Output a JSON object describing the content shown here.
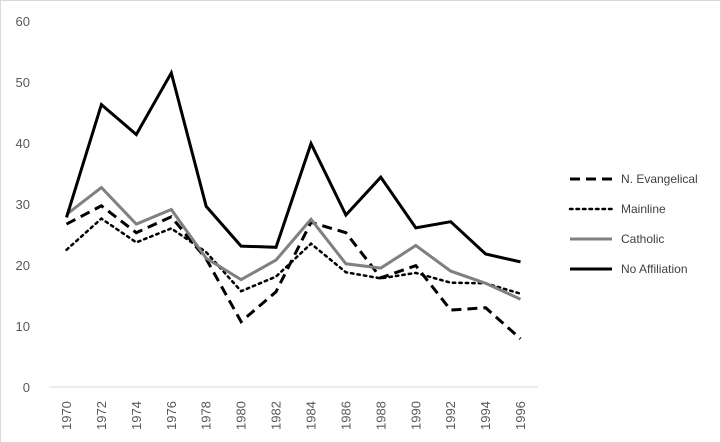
{
  "chart_data": {
    "type": "line",
    "title": "",
    "xlabel": "",
    "ylabel": "",
    "ylim": [
      0,
      60
    ],
    "yticks": [
      0,
      10,
      20,
      30,
      40,
      50,
      60
    ],
    "x": [
      "1970",
      "1972",
      "1974",
      "1976",
      "1978",
      "1980",
      "1982",
      "1984",
      "1986",
      "1988",
      "1990",
      "1992",
      "1994",
      "1996"
    ],
    "grid": false,
    "legend_position": "right",
    "series": [
      {
        "name": "N. Evangelical",
        "style": "dashed",
        "color": "#000000",
        "values": [
          26.7,
          29.7,
          25.3,
          27.9,
          21.0,
          10.7,
          15.6,
          27.0,
          25.3,
          17.9,
          19.9,
          12.6,
          13.0,
          7.9
        ]
      },
      {
        "name": "Mainline",
        "style": "dotted",
        "color": "#000000",
        "values": [
          22.5,
          27.6,
          23.7,
          26.0,
          22.1,
          15.7,
          18.1,
          23.5,
          18.8,
          17.8,
          18.7,
          17.1,
          17.0,
          15.3
        ]
      },
      {
        "name": "Catholic",
        "style": "solid",
        "color": "#808080",
        "values": [
          28.3,
          32.7,
          26.7,
          29.1,
          21.1,
          17.6,
          20.8,
          27.5,
          20.2,
          19.5,
          23.2,
          19.0,
          17.0,
          14.4
        ]
      },
      {
        "name": "No Affiliation",
        "style": "solid",
        "color": "#000000",
        "values": [
          27.8,
          46.3,
          41.4,
          51.5,
          29.6,
          23.1,
          22.9,
          39.9,
          28.2,
          34.4,
          26.1,
          27.1,
          21.8,
          20.5
        ]
      }
    ]
  }
}
